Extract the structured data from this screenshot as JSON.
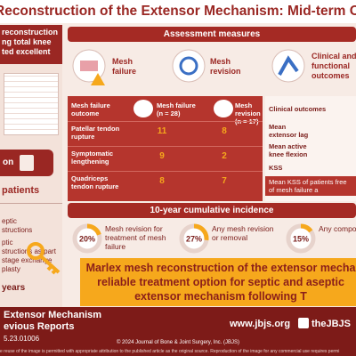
{
  "title": "Reconstruction of the Extensor Mechanism: Mid-term Outcome",
  "left": {
    "intro": [
      "reconstruction",
      "ng total knee",
      "ted excellent"
    ],
    "badge": "on",
    "patients": "patients",
    "items": [
      [
        "eptic",
        "structions"
      ],
      [
        "ptic",
        "structions as part",
        "stage exchange",
        "plasty"
      ]
    ],
    "years": "years"
  },
  "assessment": {
    "header": "Assessment measures",
    "measures": [
      "Mesh failure",
      "Mesh revision",
      "Clinical and functional outcomes"
    ]
  },
  "table": {
    "header": [
      "Mesh failure outcome",
      "Mesh failure (n = 28)",
      "Mesh revision (n = 17)"
    ],
    "rows": [
      [
        "Patellar tendon rupture",
        11,
        8
      ],
      [
        "Symptomatic lengthening",
        9,
        2
      ],
      [
        "Quadriceps tendon rupture",
        8,
        7
      ]
    ]
  },
  "clinical": {
    "header": "Clinical outcomes",
    "rows": [
      "Mean extensor lag",
      "Mean active knee flexion",
      "KSS"
    ],
    "note": "Mean KSS of patients free of mesh failure a"
  },
  "incidence": {
    "header": "10-year cumulative incidence",
    "items": [
      {
        "value": 20,
        "label": "20%",
        "text": "Mesh revision for treatment of mesh failure"
      },
      {
        "value": 27,
        "label": "27%",
        "text": "Any mesh revision or removal"
      },
      {
        "value": 15,
        "label": "15%",
        "text": "Any component"
      }
    ]
  },
  "conclusion": [
    "Marlex mesh reconstruction of the extensor mecha",
    "reliable treatment option for septic and aseptic",
    "extensor mechanism following T"
  ],
  "footer": {
    "lines": [
      "Extensor Mechanism",
      "evious Reports",
      "5.23.01006"
    ],
    "site": "www.jbjs.org",
    "social": "theJBJS",
    "copyright": "© 2024 Journal of Bone & Joint Surgery, Inc. (JBJS)",
    "legal": "e reuse of the image is permitted with appropriate attribution to the published article as the original source. Reproduction of the image for any commercial use requires permi"
  }
}
